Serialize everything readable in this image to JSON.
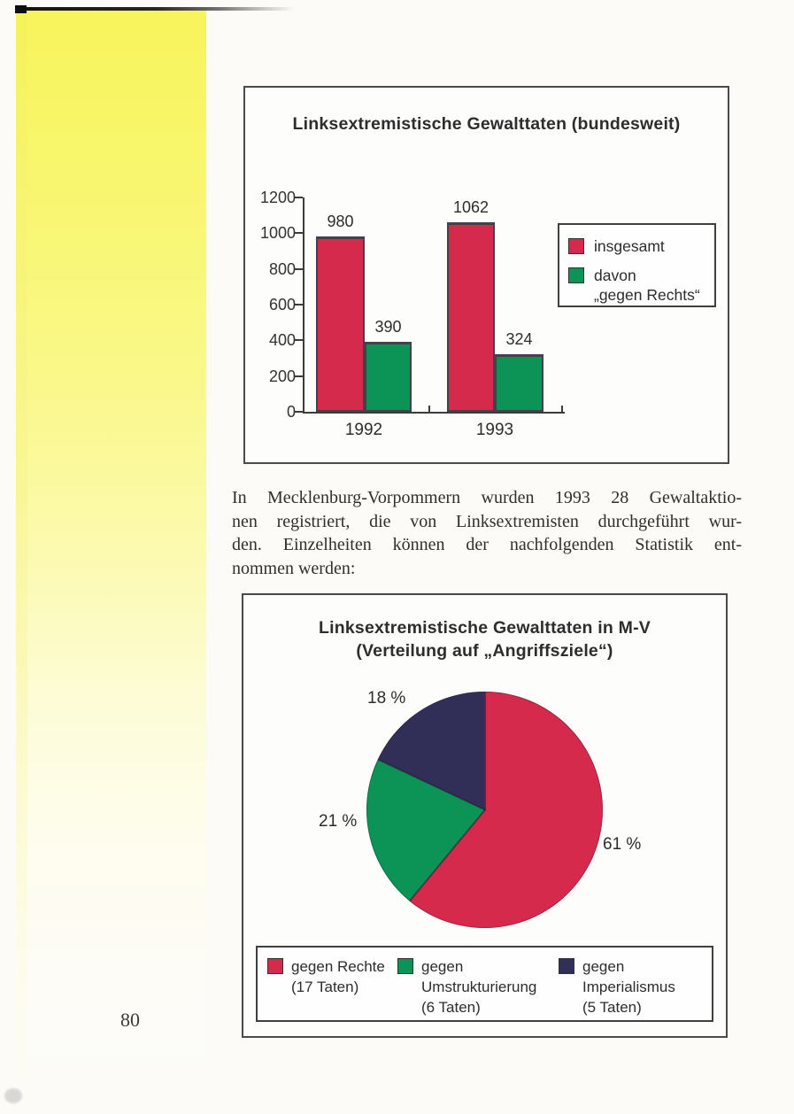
{
  "page": {
    "number": "80"
  },
  "colors": {
    "red": "#d62a4c",
    "green": "#0c9456",
    "navy": "#312e57",
    "frame": "#4a4a4a",
    "highlight_yellow": "#f7f45c"
  },
  "paragraph": {
    "lines": [
      "In Mecklenburg-Vorpommern wurden 1993 28 Gewaltaktio-",
      "nen registriert, die von Linksextremisten durchgeführt wur-",
      "den. Einzelheiten können der nachfolgenden Statistik ent-",
      "nommen werden:"
    ]
  },
  "chart_data": [
    {
      "type": "bar",
      "title": "Linksextremistische Gewalttaten (bundesweit)",
      "categories": [
        "1992",
        "1993"
      ],
      "series": [
        {
          "name": "insgesamt",
          "color_key": "red",
          "values": [
            980,
            1062
          ]
        },
        {
          "name": "davon „gegen Rechts“",
          "color_key": "green",
          "values": [
            390,
            324
          ]
        }
      ],
      "ylim": [
        0,
        1200
      ],
      "yticks": [
        0,
        200,
        400,
        600,
        800,
        1000,
        1200
      ],
      "grid": false,
      "legend_position": "right",
      "legend": [
        {
          "color_key": "red",
          "lines": [
            "insgesamt"
          ]
        },
        {
          "color_key": "green",
          "lines": [
            "davon",
            "„gegen Rechts“"
          ]
        }
      ]
    },
    {
      "type": "pie",
      "title_lines": [
        "Linksextremistische Gewalttaten in M-V",
        "(Verteilung auf „Angriffsziele“)"
      ],
      "slices": [
        {
          "label": "gegen Rechte (17 Taten)",
          "pct": 61,
          "count": 17,
          "pct_label": "61 %",
          "color_key": "red"
        },
        {
          "label": "gegen Umstrukturierung (6 Taten)",
          "pct": 21,
          "count": 6,
          "pct_label": "21 %",
          "color_key": "green"
        },
        {
          "label": "gegen Imperialismus (5 Taten)",
          "pct": 18,
          "count": 5,
          "pct_label": "18 %",
          "color_key": "navy"
        }
      ],
      "legend_position": "bottom",
      "legend": [
        {
          "color_key": "red",
          "lines": [
            "gegen Rechte",
            "(17 Taten)"
          ]
        },
        {
          "color_key": "green",
          "lines": [
            "gegen",
            "Umstrukturierung",
            "(6 Taten)"
          ]
        },
        {
          "color_key": "navy",
          "lines": [
            "gegen",
            "Imperialismus",
            "(5 Taten)"
          ]
        }
      ]
    }
  ]
}
